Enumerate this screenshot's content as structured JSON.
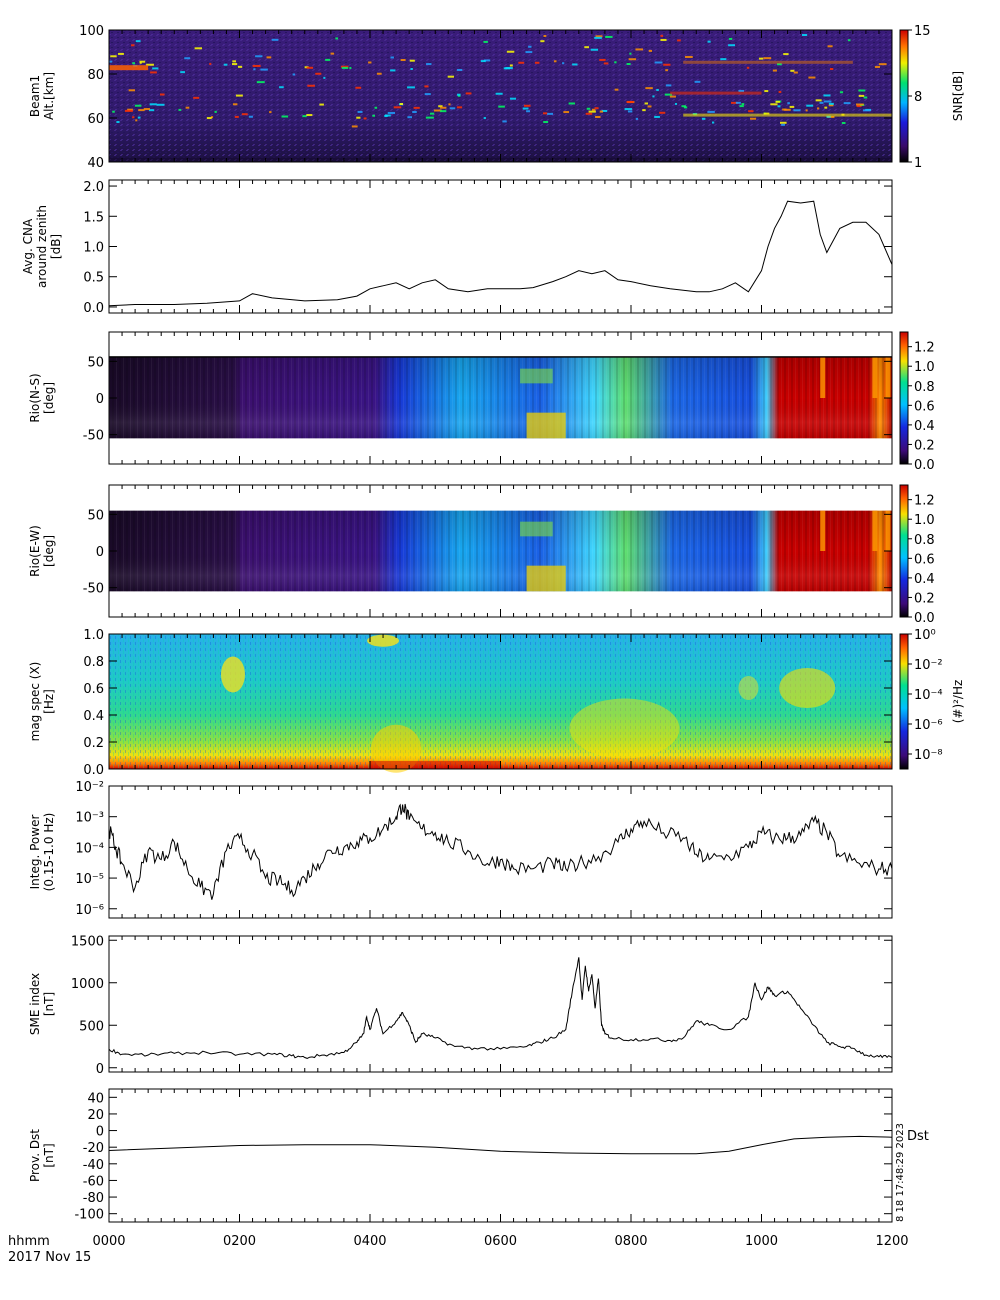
{
  "chart_data": [
    {
      "type": "heatmap",
      "ylabel": [
        "Beam1",
        "Alt.[km]"
      ],
      "ylim": [
        40,
        100
      ],
      "yticks": [
        "40",
        "60",
        "80",
        "100"
      ],
      "colorbar": {
        "label": "SNR[dB]",
        "ticks": [
          "1",
          "8",
          "15"
        ],
        "range": [
          1,
          15
        ]
      }
    },
    {
      "type": "line",
      "ylabel": [
        "Avg. CNA",
        "around zenith",
        "[dB]"
      ],
      "ylim": [
        -0.1,
        2.1
      ],
      "yticks": [
        "0.0",
        "0.5",
        "1.0",
        "1.5",
        "2.0"
      ],
      "x": [
        0,
        40,
        100,
        150,
        200,
        220,
        250,
        300,
        350,
        380,
        400,
        420,
        440,
        460,
        480,
        500,
        520,
        550,
        580,
        600,
        630,
        650,
        680,
        700,
        720,
        740,
        760,
        780,
        800,
        830,
        860,
        900,
        920,
        940,
        960,
        980,
        1000,
        1010,
        1020,
        1030,
        1040,
        1060,
        1080,
        1090,
        1100,
        1120,
        1140,
        1160,
        1180,
        1200
      ],
      "y": [
        0.02,
        0.04,
        0.04,
        0.06,
        0.1,
        0.22,
        0.15,
        0.1,
        0.12,
        0.18,
        0.3,
        0.35,
        0.4,
        0.3,
        0.4,
        0.45,
        0.3,
        0.25,
        0.3,
        0.3,
        0.3,
        0.32,
        0.42,
        0.5,
        0.6,
        0.55,
        0.6,
        0.45,
        0.42,
        0.35,
        0.3,
        0.25,
        0.25,
        0.3,
        0.4,
        0.25,
        0.6,
        1.0,
        1.3,
        1.5,
        1.75,
        1.72,
        1.75,
        1.2,
        0.9,
        1.3,
        1.4,
        1.4,
        1.2,
        0.7
      ]
    },
    {
      "type": "heatmap",
      "ylabel": [
        "Rio(N-S)",
        "[deg]"
      ],
      "ylim": [
        -90,
        90
      ],
      "yticks": [
        "-50",
        "0",
        "50"
      ],
      "colorbar": {
        "label": "",
        "ticks": [
          "0.0",
          "0.2",
          "0.4",
          "0.6",
          "0.8",
          "1.0",
          "1.2"
        ],
        "range": [
          0,
          1.35
        ]
      }
    },
    {
      "type": "heatmap",
      "ylabel": [
        "Rio(E-W)",
        "[deg]"
      ],
      "ylim": [
        -90,
        90
      ],
      "yticks": [
        "-50",
        "0",
        "50"
      ],
      "colorbar": {
        "label": "",
        "ticks": [
          "0.0",
          "0.2",
          "0.4",
          "0.6",
          "0.8",
          "1.0",
          "1.2"
        ],
        "range": [
          0,
          1.35
        ]
      }
    },
    {
      "type": "heatmap",
      "ylabel": [
        "mag spec (X)",
        "[Hz]"
      ],
      "ylim": [
        0,
        1.0
      ],
      "yticks": [
        "0.0",
        "0.2",
        "0.4",
        "0.6",
        "0.8",
        "1.0"
      ],
      "colorbar": {
        "label": "(#)²/Hz",
        "ticks": [
          "10⁻⁸",
          "10⁻⁶",
          "10⁻⁴",
          "10⁻²",
          "10⁰"
        ],
        "range": [
          -9,
          0
        ],
        "scale": "log"
      }
    },
    {
      "type": "line",
      "scale": "log",
      "ylabel": [
        "Integ. Power",
        "(0.15-1.0 Hz)"
      ],
      "ylim": [
        5e-07,
        0.01
      ],
      "yticks": [
        "10⁻⁶",
        "10⁻⁵",
        "10⁻⁴",
        "10⁻³",
        "10⁻²"
      ],
      "x": [
        0,
        10,
        20,
        40,
        60,
        80,
        100,
        120,
        140,
        160,
        180,
        200,
        220,
        240,
        260,
        280,
        300,
        320,
        340,
        360,
        380,
        400,
        420,
        440,
        450,
        460,
        480,
        500,
        520,
        550,
        580,
        600,
        620,
        650,
        680,
        700,
        720,
        750,
        780,
        800,
        820,
        850,
        880,
        900,
        920,
        950,
        980,
        1000,
        1020,
        1040,
        1060,
        1080,
        1100,
        1120,
        1150,
        1180,
        1200
      ],
      "y": [
        0.0004,
        0.0001,
        3e-05,
        5e-06,
        8e-05,
        4e-05,
        0.00015,
        2e-05,
        5e-06,
        3e-06,
        8e-05,
        0.0002,
        6e-05,
        1e-05,
        8e-06,
        4e-06,
        1e-05,
        3e-05,
        8e-05,
        0.0001,
        0.00015,
        0.0002,
        0.0004,
        0.001,
        0.0025,
        0.0008,
        0.0004,
        0.0003,
        0.00015,
        8e-05,
        3e-05,
        4e-05,
        2e-05,
        2e-05,
        3e-05,
        2e-05,
        3e-05,
        5e-05,
        0.00015,
        0.0004,
        0.0007,
        0.0003,
        0.0002,
        6e-05,
        4e-05,
        5e-05,
        0.0001,
        0.0003,
        0.0002,
        0.0002,
        0.00025,
        0.0007,
        0.0003,
        5e-05,
        3e-05,
        2e-05,
        2e-05
      ]
    },
    {
      "type": "line",
      "ylabel": [
        "SME index",
        "[nT]"
      ],
      "ylim": [
        -50,
        1550
      ],
      "yticks": [
        "0",
        "500",
        "1000",
        "1500"
      ],
      "x": [
        0,
        20,
        60,
        100,
        150,
        200,
        250,
        280,
        300,
        330,
        360,
        380,
        390,
        395,
        400,
        410,
        420,
        440,
        450,
        460,
        470,
        480,
        500,
        530,
        560,
        600,
        640,
        660,
        680,
        700,
        710,
        720,
        725,
        730,
        735,
        740,
        745,
        750,
        755,
        760,
        770,
        800,
        830,
        860,
        880,
        900,
        920,
        950,
        980,
        990,
        1000,
        1010,
        1020,
        1040,
        1060,
        1080,
        1100,
        1120,
        1140,
        1160,
        1180,
        1200
      ],
      "y": [
        220,
        160,
        150,
        170,
        180,
        160,
        160,
        140,
        120,
        150,
        180,
        300,
        400,
        600,
        450,
        700,
        400,
        550,
        650,
        500,
        300,
        400,
        350,
        250,
        230,
        220,
        250,
        300,
        350,
        450,
        900,
        1300,
        800,
        1200,
        900,
        1100,
        700,
        1050,
        500,
        400,
        350,
        330,
        340,
        320,
        350,
        550,
        500,
        450,
        600,
        1000,
        800,
        950,
        850,
        900,
        700,
        500,
        300,
        250,
        230,
        150,
        130,
        120
      ]
    },
    {
      "type": "line",
      "ylabel": [
        "Prov. Dst",
        "[nT]"
      ],
      "ylim": [
        -110,
        50
      ],
      "yticks": [
        "-100",
        "-80",
        "-60",
        "-40",
        "-20",
        "0",
        "20",
        "40"
      ],
      "series_label": "Dst",
      "x": [
        0,
        100,
        200,
        300,
        400,
        500,
        600,
        700,
        800,
        900,
        950,
        1000,
        1050,
        1100,
        1150,
        1200
      ],
      "y": [
        -24,
        -21,
        -18,
        -17,
        -17,
        -20,
        -25,
        -27,
        -28,
        -28,
        -25,
        -17,
        -10,
        -8,
        -7,
        -8
      ]
    }
  ],
  "x_axis": {
    "ticks": [
      "0000",
      "0200",
      "0400",
      "0600",
      "0800",
      "1000",
      "1200"
    ],
    "range": [
      0,
      1200
    ],
    "label": "hhmm",
    "date": "2017 Nov 15"
  },
  "stamp": "8  18  17:48:29  2023"
}
